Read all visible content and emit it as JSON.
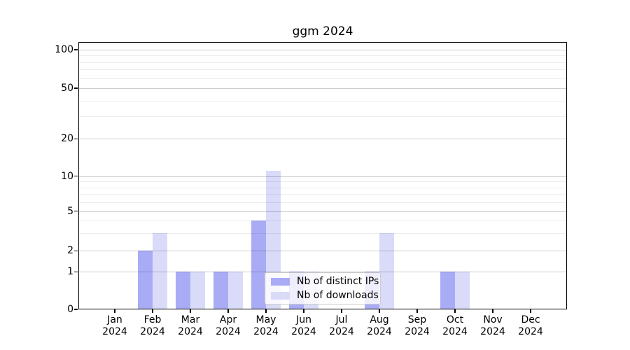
{
  "title": "ggm 2024",
  "chart_data": {
    "type": "bar",
    "title": "ggm 2024",
    "categories": [
      "Jan 2024",
      "Feb 2024",
      "Mar 2024",
      "Apr 2024",
      "May 2024",
      "Jun 2024",
      "Jul 2024",
      "Aug 2024",
      "Sep 2024",
      "Oct 2024",
      "Nov 2024",
      "Dec 2024"
    ],
    "series": [
      {
        "name": "Nb of distinct IPs",
        "color": "#a9acf5",
        "values": [
          0,
          2,
          1,
          1,
          4,
          1,
          0,
          1,
          0,
          1,
          0,
          0
        ]
      },
      {
        "name": "Nb of downloads",
        "color": "#d9dbf9",
        "values": [
          0,
          3,
          1,
          1,
          11,
          1,
          0,
          3,
          0,
          1,
          0,
          0
        ]
      }
    ],
    "xlabel": "",
    "ylabel": "",
    "y_axis": {
      "scale": "symlog",
      "major_ticks": [
        0,
        1,
        2,
        5,
        10,
        20,
        50,
        100
      ],
      "minor_ticks": [
        3,
        4,
        6,
        7,
        8,
        9,
        30,
        40,
        60,
        70,
        80,
        90
      ],
      "ylim": [
        0,
        115
      ]
    },
    "grid": "both",
    "legend_position": "inside lower-center"
  },
  "colors": {
    "distinct_ips_bar": "#a9acf5",
    "downloads_bar": "#d9dbf9",
    "grid_major": "#cccccc",
    "grid_minor": "#ededed",
    "axis": "#000000",
    "background": "#ffffff"
  }
}
